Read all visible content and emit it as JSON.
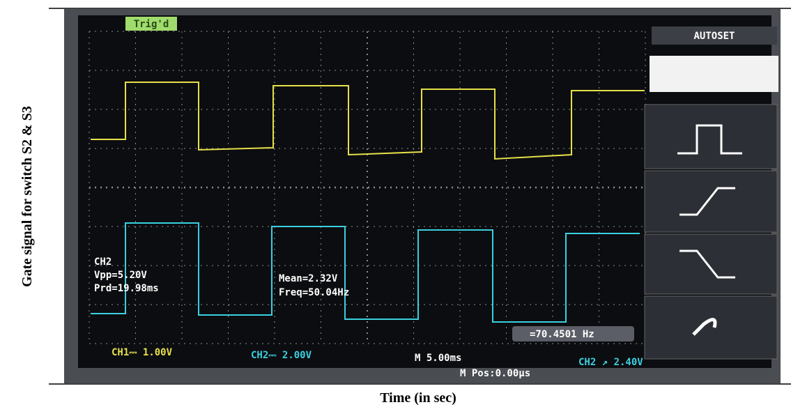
{
  "figure": {
    "y_label": "Gate signal for switch S2 & S3",
    "x_label": "Time (in sec)",
    "screen": {
      "trigger_status": "Trig'd",
      "menu_title": "AUTOSET",
      "measure": {
        "channel": "CH2",
        "vpp": "Vpp=5.20V",
        "period": "Prd=19.98ms",
        "mean": "Mean=2.32V",
        "freq": "Freq=50.04Hz"
      },
      "counter": "=70.4501 Hz",
      "ch1_scale": "CH1⎓ 1.00V",
      "ch2_scale": "CH2⎓ 2.00V",
      "timebase": "M 5.00ms",
      "position": "M Pos:0.00μs",
      "trigger_level": "CH2 ↗ 2.40V"
    }
  }
}
